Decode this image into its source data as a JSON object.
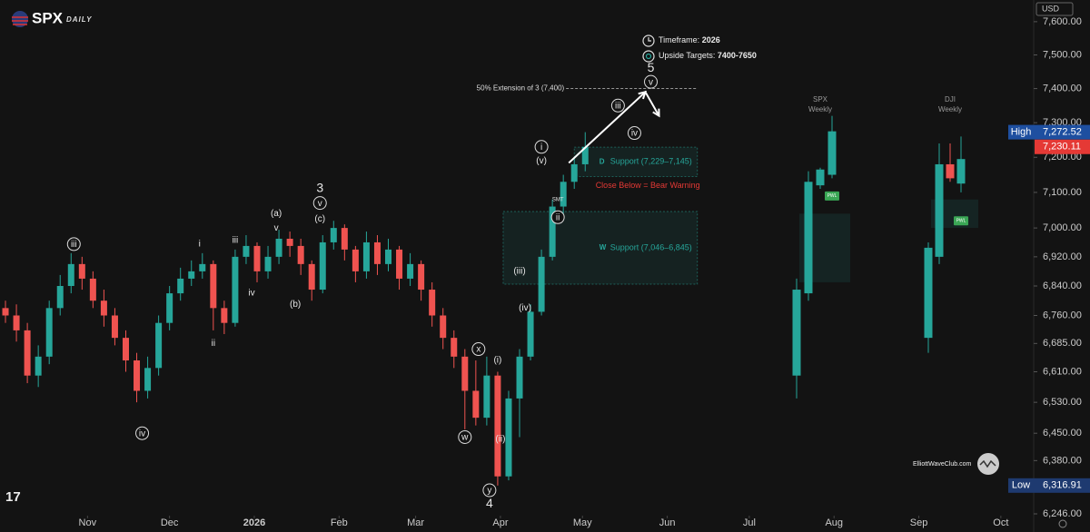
{
  "chart_data": {
    "type": "candlestick",
    "header": {
      "symbol": "SPX",
      "timeframe": "DAILY"
    },
    "currency": "USD",
    "log": true,
    "grid": false,
    "up_color": "#26a69a",
    "down_color": "#ef5350",
    "xlim": [
      -32,
      346
    ],
    "xticks": [
      {
        "value": 0,
        "label": "Nov"
      },
      {
        "value": 30,
        "label": "Dec"
      },
      {
        "value": 61,
        "label": "2026"
      },
      {
        "value": 92,
        "label": "Feb"
      },
      {
        "value": 120,
        "label": "Mar"
      },
      {
        "value": 151,
        "label": "Apr"
      },
      {
        "value": 181,
        "label": "May"
      },
      {
        "value": 212,
        "label": "Jun"
      },
      {
        "value": 242,
        "label": "Jul"
      },
      {
        "value": 273,
        "label": "Aug"
      },
      {
        "value": 304,
        "label": "Sep"
      },
      {
        "value": 334,
        "label": "Oct"
      }
    ],
    "ylim": [
      6246,
      7666
    ],
    "yticks": [
      {
        "value": 7600,
        "label": "7,600.00"
      },
      {
        "value": 7500,
        "label": "7,500.00"
      },
      {
        "value": 7400,
        "label": "7,400.00"
      },
      {
        "value": 7300,
        "label": "7,300.00"
      },
      {
        "value": 7200,
        "label": "7,200.00"
      },
      {
        "value": 7100,
        "label": "7,100.00"
      },
      {
        "value": 7000,
        "label": "7,000.00"
      },
      {
        "value": 6920,
        "label": "6,920.00"
      },
      {
        "value": 6840,
        "label": "6,840.00"
      },
      {
        "value": 6760,
        "label": "6,760.00"
      },
      {
        "value": 6685,
        "label": "6,685.00"
      },
      {
        "value": 6610,
        "label": "6,610.00"
      },
      {
        "value": 6530,
        "label": "6,530.00"
      },
      {
        "value": 6450,
        "label": "6,450.00"
      },
      {
        "value": 6380,
        "label": "6,380.00"
      },
      {
        "value": 6246,
        "label": "6,246.00"
      }
    ],
    "x": [
      -30,
      -26,
      -22,
      -18,
      -14,
      -10,
      -6,
      -2,
      2,
      6,
      10,
      14,
      18,
      22,
      26,
      30,
      34,
      38,
      42,
      46,
      50,
      54,
      58,
      62,
      66,
      70,
      74,
      78,
      82,
      86,
      90,
      94,
      98,
      102,
      106,
      110,
      114,
      118,
      122,
      126,
      130,
      134,
      138,
      142,
      146,
      150,
      154,
      158,
      162,
      166,
      170,
      174,
      178,
      182
    ],
    "open": [
      6780,
      6760,
      6720,
      6600,
      6650,
      6780,
      6840,
      6900,
      6860,
      6800,
      6760,
      6700,
      6640,
      6560,
      6620,
      6740,
      6820,
      6860,
      6880,
      6900,
      6780,
      6740,
      6920,
      6950,
      6880,
      6920,
      6970,
      6950,
      6900,
      6830,
      6960,
      7000,
      6940,
      6880,
      6960,
      6900,
      6940,
      6860,
      6900,
      6830,
      6760,
      6700,
      6650,
      6560,
      6490,
      6600,
      6340,
      6540,
      6650,
      6770,
      6920,
      7060,
      7130,
      7180
    ],
    "high": [
      6800,
      6790,
      6740,
      6680,
      6800,
      6870,
      6930,
      6920,
      6880,
      6830,
      6780,
      6720,
      6660,
      6650,
      6760,
      6840,
      6890,
      6910,
      6930,
      6910,
      6800,
      6940,
      6980,
      6960,
      6950,
      6995,
      6990,
      6970,
      6910,
      6980,
      7020,
      7010,
      6950,
      6990,
      6980,
      6970,
      6950,
      6930,
      6910,
      6850,
      6780,
      6720,
      6670,
      6640,
      6650,
      6610,
      6560,
      6670,
      6790,
      6940,
      7080,
      7150,
      7200,
      7272.52
    ],
    "low": [
      6740,
      6690,
      6580,
      6570,
      6630,
      6760,
      6820,
      6830,
      6780,
      6730,
      6680,
      6610,
      6530,
      6540,
      6600,
      6720,
      6800,
      6840,
      6860,
      6720,
      6710,
      6730,
      6900,
      6850,
      6860,
      6900,
      6920,
      6870,
      6800,
      6820,
      6940,
      6910,
      6850,
      6860,
      6870,
      6880,
      6830,
      6840,
      6800,
      6730,
      6670,
      6620,
      6460,
      6470,
      6470,
      6316.91,
      6330,
      6440,
      6640,
      6760,
      6910,
      7040,
      7110,
      7160
    ],
    "close": [
      6760,
      6720,
      6600,
      6650,
      6780,
      6840,
      6900,
      6860,
      6800,
      6760,
      6700,
      6640,
      6560,
      6620,
      6740,
      6820,
      6860,
      6880,
      6900,
      6780,
      6740,
      6920,
      6950,
      6880,
      6920,
      6970,
      6950,
      6900,
      6830,
      6960,
      7000,
      6940,
      6880,
      6960,
      6900,
      6940,
      6860,
      6900,
      6830,
      6760,
      6700,
      6650,
      6560,
      6490,
      6600,
      6340,
      6540,
      6650,
      6770,
      6920,
      7060,
      7130,
      7180,
      7230.11
    ],
    "zones": [
      {
        "name": "D",
        "label": "Support (7,229–7,145)",
        "from": 7229,
        "to": 7145,
        "x": [
          178,
          223
        ],
        "color": "#26a69a",
        "warning": "Close Below = Bear Warning",
        "warning_color": "#e53935"
      },
      {
        "name": "W",
        "label": "Support (7,046–6,845)",
        "from": 7046,
        "to": 6845,
        "x": [
          152,
          223
        ],
        "color": "#26a69a"
      }
    ],
    "extension": {
      "label": "50% Extension of 3 (7,400)",
      "value": 7400,
      "x": [
        175,
        223
      ]
    },
    "projection": {
      "x": [
        176,
        204,
        209
      ],
      "y": [
        7184,
        7390,
        7320
      ]
    },
    "annotations": [
      {
        "text": "iii",
        "x": -5,
        "y": 6955,
        "circled": true
      },
      {
        "text": "iv",
        "x": 20,
        "y": 6450,
        "circled": true
      },
      {
        "text": "i",
        "x": 41,
        "y": 6955,
        "circled": false
      },
      {
        "text": "ii",
        "x": 46,
        "y": 6685,
        "circled": false
      },
      {
        "text": "iii",
        "x": 54,
        "y": 6965,
        "circled": false
      },
      {
        "text": "iv",
        "x": 60,
        "y": 6820,
        "circled": false
      },
      {
        "text": "v",
        "x": 69,
        "y": 7000,
        "circled": false
      },
      {
        "text": "(a)",
        "x": 69,
        "y": 7040,
        "circled": false
      },
      {
        "text": "(b)",
        "x": 76,
        "y": 6790,
        "circled": false
      },
      {
        "text": "(c)",
        "x": 85,
        "y": 7025,
        "circled": false
      },
      {
        "text": "v",
        "x": 85,
        "y": 7070,
        "circled": true
      },
      {
        "text": "3",
        "x": 85,
        "y": 7110,
        "circled": false
      },
      {
        "text": "x",
        "x": 143,
        "y": 6670,
        "circled": true
      },
      {
        "text": "w",
        "x": 138,
        "y": 6440,
        "circled": true
      },
      {
        "text": "y",
        "x": 147,
        "y": 6305,
        "circled": true
      },
      {
        "text": "4",
        "x": 147,
        "y": 6270,
        "circled": false
      },
      {
        "text": "(i)",
        "x": 150,
        "y": 6640,
        "circled": false
      },
      {
        "text": "(ii)",
        "x": 151,
        "y": 6435,
        "circled": false
      },
      {
        "text": "(iii)",
        "x": 158,
        "y": 6880,
        "circled": false
      },
      {
        "text": "(iv)",
        "x": 160,
        "y": 6780,
        "circled": false
      },
      {
        "text": "i",
        "x": 166,
        "y": 7230,
        "circled": true
      },
      {
        "text": "(v)",
        "x": 166,
        "y": 7190,
        "circled": false
      },
      {
        "text": "ii",
        "x": 172,
        "y": 7030,
        "circled": true
      },
      {
        "text": "iii",
        "x": 194,
        "y": 7350,
        "circled": true
      },
      {
        "text": "iv",
        "x": 200,
        "y": 7270,
        "circled": true
      },
      {
        "text": "v",
        "x": 206,
        "y": 7420,
        "circled": true
      },
      {
        "text": "5",
        "x": 206,
        "y": 7460,
        "circled": false
      },
      {
        "text": "SMT",
        "x": 172,
        "y": 7080,
        "circled": false
      }
    ],
    "info": [
      {
        "label": "Timeframe:",
        "value": "2026"
      },
      {
        "label": "Upside Targets:",
        "value": "7400-7650"
      }
    ],
    "price_labels": [
      {
        "name": "High",
        "value": 7272.52,
        "label": "7,272.52",
        "color": "#1e4fa0"
      },
      {
        "value": 7230.11,
        "label": "7,230.11",
        "color": "#e53935"
      },
      {
        "name": "Low",
        "value": 6316.91,
        "label": "6,316.91",
        "color": "#1e3a70"
      }
    ],
    "insets": [
      {
        "name": "SPX",
        "subtitle": "Weekly",
        "badge": "PWL",
        "badge_y": 7090,
        "zone": [
          7040,
          6850
        ],
        "open": [
          6600,
          6820,
          7120,
          7150
        ],
        "high": [
          6860,
          7160,
          7170,
          7320
        ],
        "low": [
          6540,
          6800,
          7110,
          7140
        ],
        "close": [
          6830,
          7130,
          7165,
          7275
        ]
      },
      {
        "name": "DJI",
        "subtitle": "Weekly",
        "badge": "PWL",
        "badge_y": 7020,
        "zone": [
          7080,
          7000
        ],
        "open": [
          6700,
          6920,
          7180,
          7125
        ],
        "high": [
          6960,
          7240,
          7240,
          7260
        ],
        "low": [
          6660,
          6900,
          7130,
          7100
        ],
        "close": [
          6945,
          7180,
          7140,
          7195
        ]
      }
    ],
    "watermark": "ElliottWaveClub.com"
  }
}
